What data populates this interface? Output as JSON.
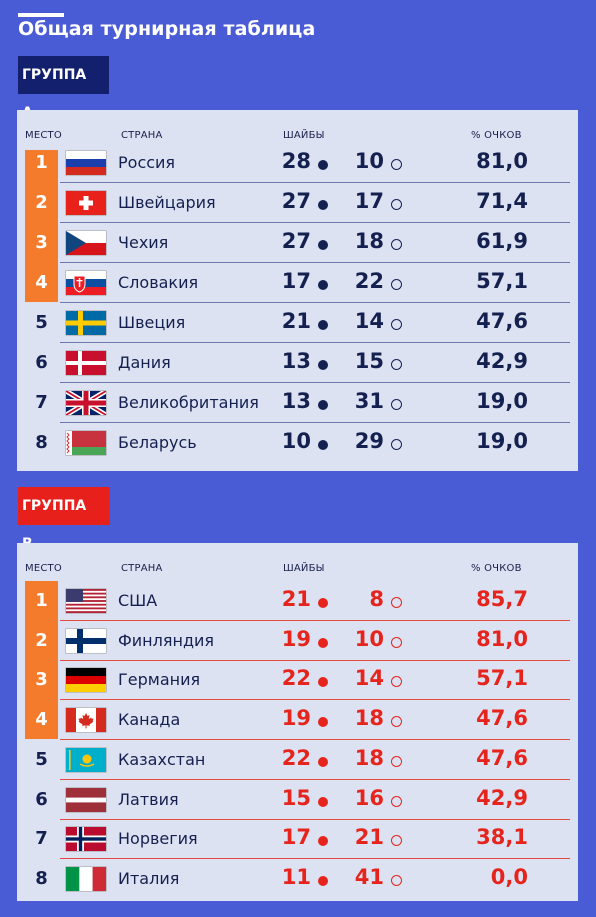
{
  "page": {
    "title": "Общая турнирная таблица"
  },
  "colors": {
    "background": "#4a5bd6",
    "group_a": "#13206e",
    "group_b": "#e8201b",
    "top4": "#f47b2c",
    "panel": "#dde2f2"
  },
  "headers": {
    "place": "МЕСТО",
    "country": "СТРАНА",
    "goals": "ШАЙБЫ",
    "pct": "% ОЧКОВ"
  },
  "groups": [
    {
      "label": "ГРУППА А",
      "rows": [
        {
          "place": "1",
          "flag": "russia-flag",
          "country": "Россия",
          "gf": "28",
          "ga": "10",
          "pct": "81,0"
        },
        {
          "place": "2",
          "flag": "switzerland-flag",
          "country": "Швейцария",
          "gf": "27",
          "ga": "17",
          "pct": "71,4"
        },
        {
          "place": "3",
          "flag": "czechia-flag",
          "country": "Чехия",
          "gf": "27",
          "ga": "18",
          "pct": "61,9"
        },
        {
          "place": "4",
          "flag": "slovakia-flag",
          "country": "Словакия",
          "gf": "17",
          "ga": "22",
          "pct": "57,1"
        },
        {
          "place": "5",
          "flag": "sweden-flag",
          "country": "Швеция",
          "gf": "21",
          "ga": "14",
          "pct": "47,6"
        },
        {
          "place": "6",
          "flag": "denmark-flag",
          "country": "Дания",
          "gf": "13",
          "ga": "15",
          "pct": "42,9"
        },
        {
          "place": "7",
          "flag": "uk-flag",
          "country": "Великобритания",
          "gf": "13",
          "ga": "31",
          "pct": "19,0"
        },
        {
          "place": "8",
          "flag": "belarus-flag",
          "country": "Беларусь",
          "gf": "10",
          "ga": "29",
          "pct": "19,0"
        }
      ]
    },
    {
      "label": "ГРУППА В",
      "rows": [
        {
          "place": "1",
          "flag": "usa-flag",
          "country": "США",
          "gf": "21",
          "ga": "8",
          "pct": "85,7"
        },
        {
          "place": "2",
          "flag": "finland-flag",
          "country": "Финляндия",
          "gf": "19",
          "ga": "10",
          "pct": "81,0"
        },
        {
          "place": "3",
          "flag": "germany-flag",
          "country": "Германия",
          "gf": "22",
          "ga": "14",
          "pct": "57,1"
        },
        {
          "place": "4",
          "flag": "canada-flag",
          "country": "Канада",
          "gf": "19",
          "ga": "18",
          "pct": "47,6"
        },
        {
          "place": "5",
          "flag": "kazakhstan-flag",
          "country": "Казахстан",
          "gf": "22",
          "ga": "18",
          "pct": "47,6"
        },
        {
          "place": "6",
          "flag": "latvia-flag",
          "country": "Латвия",
          "gf": "15",
          "ga": "16",
          "pct": "42,9"
        },
        {
          "place": "7",
          "flag": "norway-flag",
          "country": "Норвегия",
          "gf": "17",
          "ga": "21",
          "pct": "38,1"
        },
        {
          "place": "8",
          "flag": "italy-flag",
          "country": "Италия",
          "gf": "11",
          "ga": "41",
          "pct": "0,0"
        }
      ]
    }
  ]
}
